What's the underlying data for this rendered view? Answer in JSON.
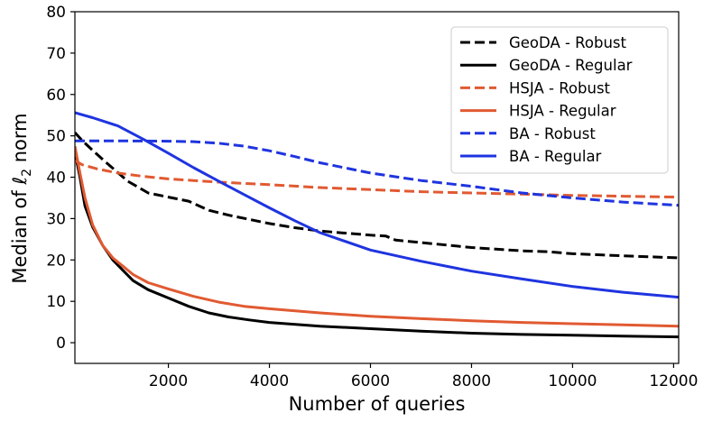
{
  "chart_data": {
    "type": "line",
    "title": "",
    "xlabel": "Number of queries",
    "ylabel_parts": {
      "prefix": "Median of ",
      "symbol": "ℓ",
      "subscript": "2",
      "suffix": " norm"
    },
    "xlim": [
      150,
      12100
    ],
    "ylim": [
      -5,
      80
    ],
    "xticks": [
      2000,
      4000,
      6000,
      8000,
      10000,
      12000
    ],
    "yticks": [
      0,
      10,
      20,
      30,
      40,
      50,
      60,
      70,
      80
    ],
    "grid": false,
    "legend_position": "top-right",
    "series": [
      {
        "name": "GeoDA - Robust",
        "color": "#000000",
        "dash": "dashed",
        "x": [
          150,
          300,
          500,
          800,
          1200,
          1600,
          2000,
          2400,
          2800,
          3200,
          3600,
          4000,
          4500,
          5000,
          5500,
          6000,
          6300,
          6500,
          7000,
          8000,
          9000,
          9500,
          10000,
          11000,
          12100
        ],
        "y": [
          50.8,
          48.8,
          46.5,
          43.2,
          39.0,
          36.2,
          35.2,
          34.2,
          32.0,
          30.8,
          29.8,
          28.8,
          27.8,
          27.0,
          26.5,
          26.0,
          25.8,
          24.8,
          24.2,
          23.0,
          22.2,
          22.0,
          21.5,
          21.0,
          20.5
        ]
      },
      {
        "name": "GeoDA - Regular",
        "color": "#000000",
        "dash": "solid",
        "x": [
          150,
          250,
          350,
          500,
          700,
          900,
          1100,
          1300,
          1600,
          2000,
          2400,
          2800,
          3200,
          3600,
          4000,
          5000,
          6000,
          7000,
          8000,
          9000,
          10000,
          11000,
          12100
        ],
        "y": [
          46,
          40,
          33,
          28,
          23.5,
          20,
          17.5,
          15,
          12.8,
          10.8,
          8.8,
          7.2,
          6.2,
          5.5,
          4.9,
          4.0,
          3.4,
          2.8,
          2.3,
          2.0,
          1.8,
          1.6,
          1.4
        ]
      },
      {
        "name": "HSJA - Robust",
        "color": "#e15a32",
        "dash": "dashed",
        "x": [
          150,
          300,
          600,
          1000,
          1500,
          2000,
          2500,
          3000,
          4000,
          5000,
          6000,
          7000,
          8000,
          9000,
          10000,
          11000,
          12100
        ],
        "y": [
          44,
          43,
          42,
          41,
          40.2,
          39.6,
          39.2,
          38.8,
          38.2,
          37.5,
          37.0,
          36.5,
          36.2,
          35.9,
          35.6,
          35.4,
          35.2
        ]
      },
      {
        "name": "HSJA - Regular",
        "color": "#e15a32",
        "dash": "solid",
        "x": [
          150,
          250,
          350,
          500,
          700,
          900,
          1100,
          1300,
          1600,
          2000,
          2500,
          3000,
          3500,
          4000,
          5000,
          6000,
          7000,
          8000,
          9000,
          10000,
          11000,
          12100
        ],
        "y": [
          47.5,
          41,
          35,
          28.5,
          23.5,
          20.5,
          18.5,
          16.5,
          14.5,
          13,
          11.2,
          9.8,
          8.8,
          8.2,
          7.2,
          6.4,
          5.8,
          5.3,
          4.9,
          4.6,
          4.3,
          4.0
        ]
      },
      {
        "name": "BA - Robust",
        "color": "#1f34e0",
        "dash": "dashed",
        "x": [
          150,
          1000,
          2000,
          2500,
          3000,
          3500,
          4000,
          4500,
          5000,
          6000,
          7000,
          8000,
          9000,
          10000,
          11000,
          12100
        ],
        "y": [
          48.8,
          48.8,
          48.7,
          48.6,
          48.2,
          47.5,
          46.4,
          45.0,
          43.5,
          41.0,
          39.2,
          37.8,
          36.2,
          35.0,
          34.0,
          33.2
        ]
      },
      {
        "name": "BA - Regular",
        "color": "#1f34e0",
        "dash": "solid",
        "x": [
          150,
          500,
          1000,
          1500,
          2000,
          2500,
          3000,
          3500,
          4000,
          4500,
          5000,
          6000,
          7000,
          8000,
          9000,
          10000,
          11000,
          12100
        ],
        "y": [
          55.6,
          54.4,
          52.4,
          49.2,
          45.8,
          42.3,
          39.0,
          35.8,
          32.6,
          29.5,
          26.6,
          22.4,
          19.7,
          17.3,
          15.4,
          13.6,
          12.2,
          11.0
        ]
      }
    ]
  }
}
